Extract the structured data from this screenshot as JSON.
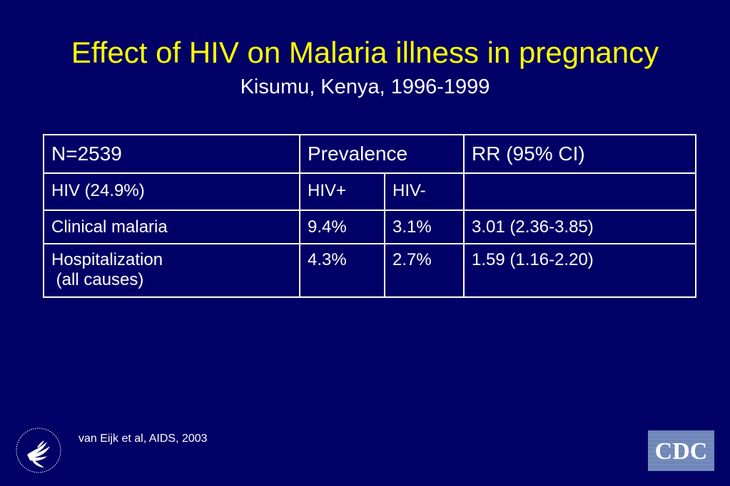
{
  "slide": {
    "title": "Effect of HIV on Malaria illness in pregnancy",
    "subtitle": "Kisumu, Kenya, 1996-1999"
  },
  "table": {
    "header": {
      "n": "N=2539",
      "prevalence": "Prevalence",
      "rr": "RR (95% CI)"
    },
    "subheader": {
      "label": "HIV (24.9%)",
      "hiv_pos": "HIV+",
      "hiv_neg": "HIV-",
      "rr": ""
    },
    "rows": [
      {
        "label_lines": [
          "Clinical malaria"
        ],
        "hiv_pos": "9.4%",
        "hiv_neg": "3.1%",
        "rr": "3.01 (2.36-3.85)"
      },
      {
        "label_lines": [
          "Hospitalization",
          " (all causes)"
        ],
        "hiv_pos": "4.3%",
        "hiv_neg": "2.7%",
        "rr": "1.59 (1.16-2.20)"
      }
    ]
  },
  "citation": "van Eijk et al, AIDS, 2003",
  "logos": {
    "hhs_icon": "hhs-eagle-seal-icon",
    "cdc_text": "CDC",
    "cdc_background": "#6f86b8"
  },
  "colors": {
    "background": "#000066",
    "title": "#ffff00",
    "text": "#ffffff"
  }
}
